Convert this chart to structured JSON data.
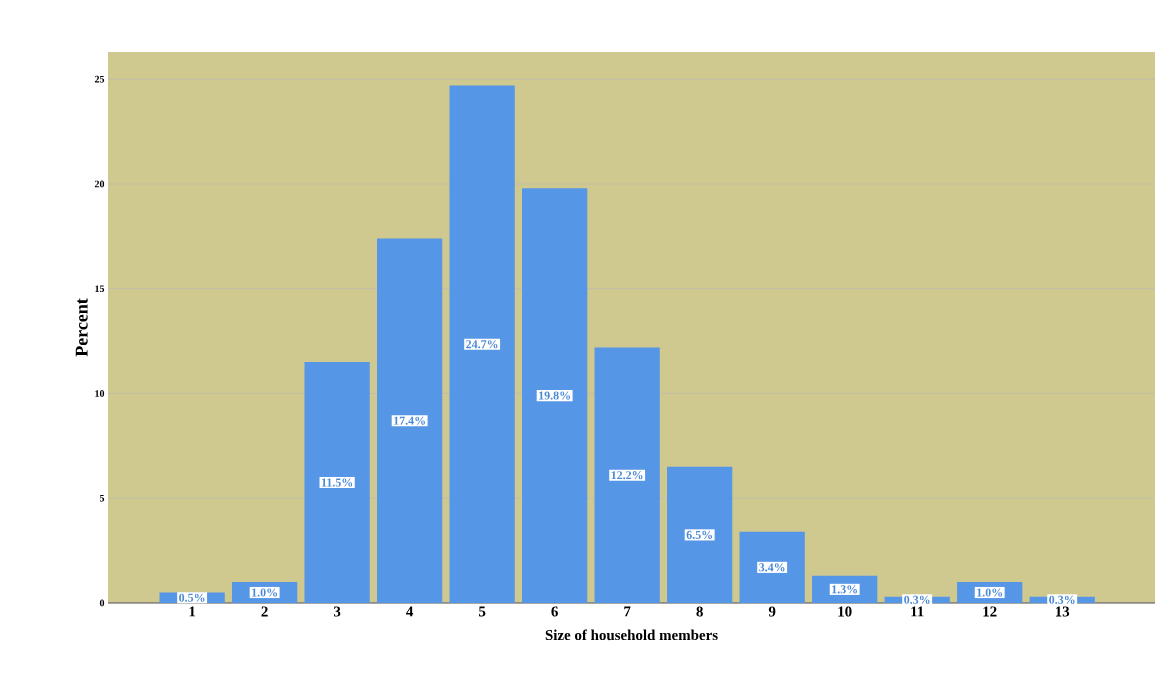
{
  "chart_data": {
    "type": "bar",
    "xlabel": "Size of household members",
    "ylabel": "Percent",
    "categories": [
      "1",
      "2",
      "3",
      "4",
      "5",
      "6",
      "7",
      "8",
      "9",
      "10",
      "11",
      "12",
      "13"
    ],
    "values": [
      0.5,
      1.0,
      11.5,
      17.4,
      24.7,
      19.8,
      12.2,
      6.5,
      3.4,
      1.3,
      0.3,
      1.0,
      0.3
    ],
    "value_labels": [
      "0.5%",
      "1.0%",
      "11.5%",
      "17.4%",
      "24.7%",
      "19.8%",
      "12.2%",
      "6.5%",
      "3.4%",
      "1.3%",
      "0.3%",
      "1.0%",
      "0.3%"
    ],
    "color": "#5596e6",
    "ylim": [
      0,
      26.3
    ],
    "yticks": [
      0,
      5,
      10,
      15,
      20,
      25
    ],
    "grid": "y"
  }
}
